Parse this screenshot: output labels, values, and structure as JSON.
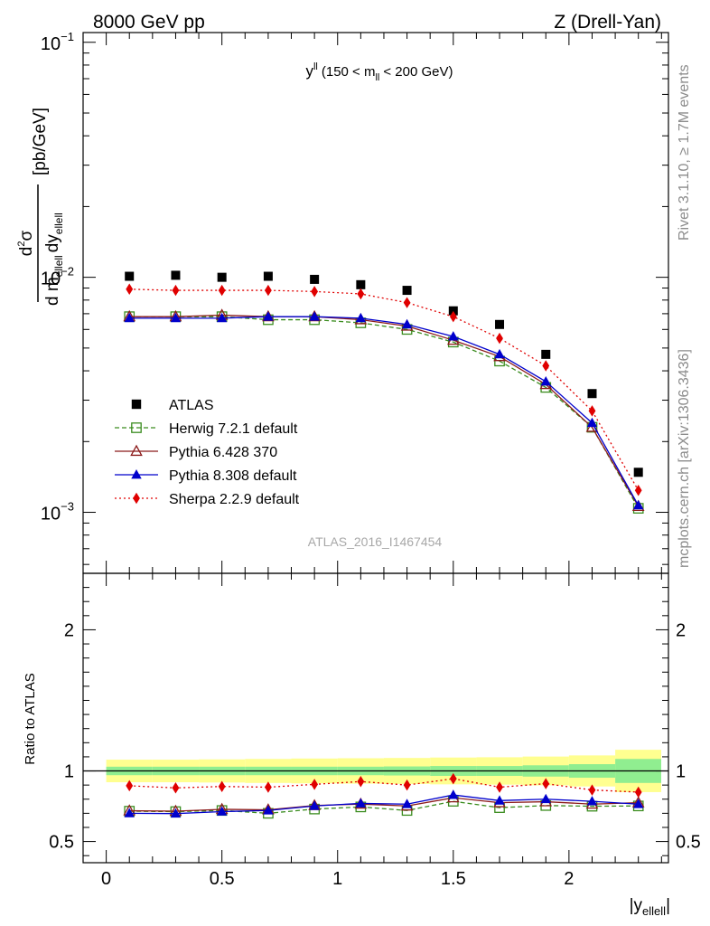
{
  "header": {
    "left": "8000 GeV pp",
    "right": "Z (Drell-Yan)"
  },
  "side_text": {
    "top": "Rivet 3.1.10, ≥ 1.7M events",
    "bottom": "mcplots.cern.ch [arXiv:1306.3436]"
  },
  "watermark": "ATLAS_2016_I1467454",
  "colors": {
    "atlas": "#000000",
    "herwig": "#3a8c1e",
    "pythia6": "#8b1a1a",
    "pythia8": "#0000cc",
    "sherpa": "#e00000",
    "band_inner": "#90ee90",
    "band_outer": "#ffff90"
  },
  "chart_data": [
    {
      "type": "scatter",
      "panel": "main",
      "title": "y^ll (150 < m_ll < 200 GeV)",
      "title_parts": {
        "var": "y",
        "var_sup": "ll",
        "open": "(150 < m",
        "m_sub": "ll",
        "close": "< 200 GeV)"
      },
      "ylabel": {
        "d2": "d",
        "sup2": "2",
        "sigma": "σ",
        "den_d": "d m",
        "den_sub1": "ellell",
        "den_dy": "dy",
        "den_sub2": "ellell",
        "unit": "[pb/GeV]"
      },
      "yscale": "log",
      "ylim": [
        0.00055,
        0.11
      ],
      "xlim": [
        -0.1,
        2.43
      ],
      "y_ticks": [
        {
          "value": 0.001,
          "base": "10",
          "exp": "−3"
        },
        {
          "value": 0.01,
          "base": "10",
          "exp": "−2"
        },
        {
          "value": 0.1,
          "base": "10",
          "exp": "−1"
        }
      ],
      "x": [
        0.1,
        0.3,
        0.5,
        0.7,
        0.9,
        1.1,
        1.3,
        1.5,
        1.7,
        1.9,
        2.1,
        2.3
      ],
      "legend_position": "left-center",
      "series": [
        {
          "key": "atlas",
          "name": "ATLAS",
          "marker": "square-filled",
          "line": "none",
          "values": [
            0.0101,
            0.0102,
            0.01,
            0.0101,
            0.0098,
            0.0093,
            0.0088,
            0.0072,
            0.0063,
            0.0047,
            0.0032,
            0.00148
          ]
        },
        {
          "key": "herwig",
          "name": "Herwig 7.2.1 default",
          "marker": "square-open",
          "line": "dashed",
          "values": [
            0.0068,
            0.0068,
            0.0068,
            0.0066,
            0.0066,
            0.0064,
            0.006,
            0.0053,
            0.0044,
            0.0034,
            0.0023,
            0.00104
          ]
        },
        {
          "key": "pythia6",
          "name": "Pythia 6.428 370",
          "marker": "triangle-open",
          "line": "solid",
          "values": [
            0.0068,
            0.0068,
            0.0069,
            0.0068,
            0.0068,
            0.0066,
            0.0062,
            0.0054,
            0.0046,
            0.0035,
            0.0023,
            0.00106
          ]
        },
        {
          "key": "pythia8",
          "name": "Pythia 8.308 default",
          "marker": "triangle-filled",
          "line": "solid",
          "values": [
            0.0067,
            0.0067,
            0.0067,
            0.0068,
            0.0068,
            0.0067,
            0.0063,
            0.0056,
            0.0047,
            0.0036,
            0.0024,
            0.00107
          ]
        },
        {
          "key": "sherpa",
          "name": "Sherpa 2.2.9 default",
          "marker": "diamond-filled",
          "line": "dotted",
          "values": [
            0.0089,
            0.0088,
            0.0088,
            0.0088,
            0.0087,
            0.0085,
            0.0078,
            0.0068,
            0.0055,
            0.0042,
            0.0027,
            0.00124
          ]
        }
      ]
    },
    {
      "type": "scatter",
      "panel": "ratio",
      "ylabel": "Ratio to ATLAS",
      "ylim": [
        0.35,
        2.4
      ],
      "xlim": [
        -0.1,
        2.43
      ],
      "xlabel": {
        "main": "|y",
        "sub": "ellell",
        "end": "|"
      },
      "x_ticks": [
        {
          "value": 0,
          "label": "0"
        },
        {
          "value": 0.5,
          "label": "0.5"
        },
        {
          "value": 1,
          "label": "1"
        },
        {
          "value": 1.5,
          "label": "1.5"
        },
        {
          "value": 2,
          "label": "2"
        }
      ],
      "y_ticks": [
        {
          "value": 0.5,
          "label": "0.5"
        },
        {
          "value": 1,
          "label": "1"
        },
        {
          "value": 2,
          "label": "2"
        }
      ],
      "x": [
        0.1,
        0.3,
        0.5,
        0.7,
        0.9,
        1.1,
        1.3,
        1.5,
        1.7,
        1.9,
        2.1,
        2.3
      ],
      "bin_edges": [
        0.0,
        0.2,
        0.4,
        0.6,
        0.8,
        1.0,
        1.2,
        1.4,
        1.6,
        1.8,
        2.0,
        2.2,
        2.4
      ],
      "band_inner": [
        0.03,
        0.03,
        0.03,
        0.03,
        0.03,
        0.03,
        0.032,
        0.035,
        0.035,
        0.04,
        0.048,
        0.085
      ],
      "band_outer": [
        0.08,
        0.08,
        0.082,
        0.085,
        0.088,
        0.09,
        0.092,
        0.095,
        0.097,
        0.102,
        0.11,
        0.15
      ],
      "series": [
        {
          "key": "herwig",
          "marker": "square-open",
          "line": "dashed",
          "values": [
            0.715,
            0.712,
            0.72,
            0.7,
            0.73,
            0.745,
            0.72,
            0.785,
            0.74,
            0.755,
            0.75,
            0.752
          ]
        },
        {
          "key": "pythia6",
          "marker": "triangle-open",
          "line": "solid",
          "values": [
            0.718,
            0.715,
            0.728,
            0.725,
            0.755,
            0.765,
            0.752,
            0.81,
            0.775,
            0.782,
            0.765,
            0.775
          ]
        },
        {
          "key": "pythia8",
          "marker": "triangle-filled",
          "line": "solid",
          "values": [
            0.7,
            0.698,
            0.712,
            0.72,
            0.752,
            0.77,
            0.765,
            0.83,
            0.79,
            0.8,
            0.785,
            0.765
          ]
        },
        {
          "key": "sherpa",
          "marker": "diamond-filled",
          "line": "dotted",
          "values": [
            0.895,
            0.88,
            0.89,
            0.885,
            0.905,
            0.925,
            0.9,
            0.945,
            0.885,
            0.91,
            0.865,
            0.85
          ]
        }
      ]
    }
  ]
}
